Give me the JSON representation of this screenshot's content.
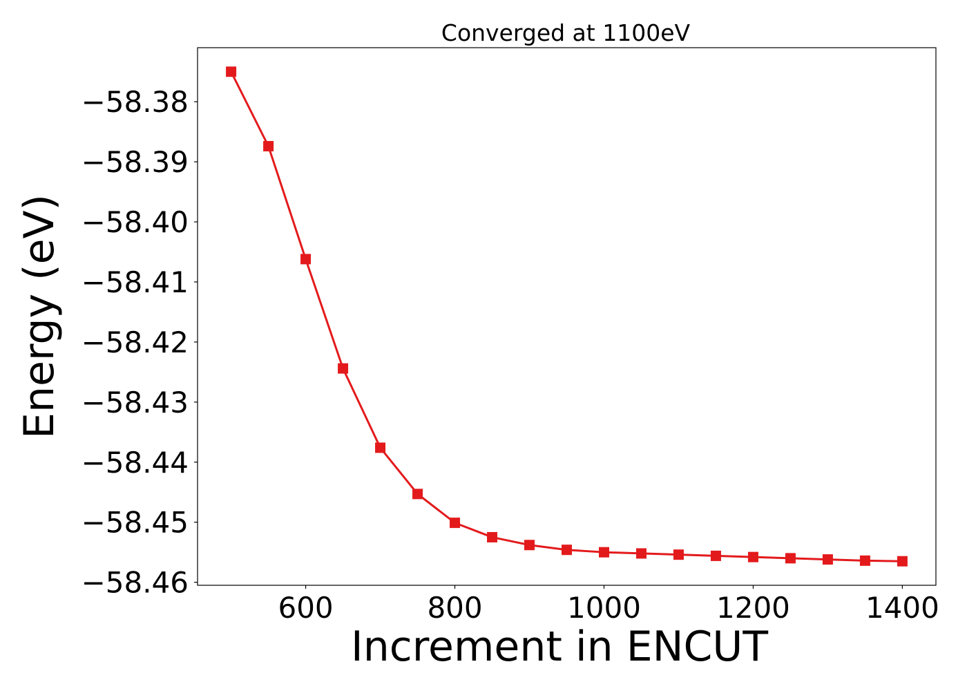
{
  "chart_data": {
    "type": "line",
    "title": "Converged at 1100eV",
    "xlabel": "Increment in ENCUT",
    "ylabel": "Energy (eV)",
    "x": [
      500,
      550,
      600,
      650,
      700,
      750,
      800,
      850,
      900,
      950,
      1000,
      1050,
      1100,
      1150,
      1200,
      1250,
      1300,
      1350,
      1400
    ],
    "series": [
      {
        "values": [
          -58.375,
          -58.3874,
          -58.4062,
          -58.4244,
          -58.4376,
          -58.4453,
          -58.4501,
          -58.4525,
          -58.4538,
          -58.4546,
          -58.455,
          -58.4552,
          -58.4554,
          -58.4556,
          -58.4558,
          -58.456,
          -58.4562,
          -58.4564,
          -58.4565
        ],
        "color": "#e31a1c",
        "marker": "square"
      }
    ],
    "xlim": [
      455,
      1445
    ],
    "ylim": [
      -58.4605,
      -58.371
    ],
    "xticks": [
      600,
      800,
      1000,
      1200,
      1400
    ],
    "xtick_labels": [
      "600",
      "800",
      "1000",
      "1200",
      "1400"
    ],
    "yticks": [
      -58.38,
      -58.39,
      -58.4,
      -58.41,
      -58.42,
      -58.43,
      -58.44,
      -58.45,
      -58.46
    ],
    "ytick_labels": [
      "−58.38",
      "−58.39",
      "−58.40",
      "−58.41",
      "−58.42",
      "−58.43",
      "−58.44",
      "−58.45",
      "−58.46"
    ],
    "grid": false,
    "legend": "none"
  }
}
